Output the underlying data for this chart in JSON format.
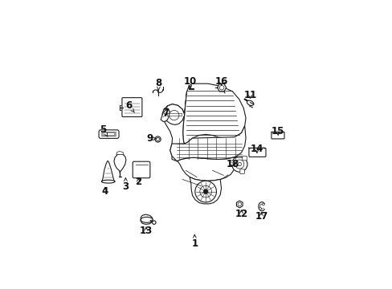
{
  "bg_color": "#ffffff",
  "line_color": "#1a1a1a",
  "label_color": "#111111",
  "label_fontsize": 8.5,
  "fig_width": 4.89,
  "fig_height": 3.6,
  "dpi": 100,
  "label_positions": {
    "1": [
      0.47,
      0.062,
      0.47,
      0.105
    ],
    "2": [
      0.218,
      0.338,
      0.218,
      0.368
    ],
    "3": [
      0.16,
      0.318,
      0.16,
      0.36
    ],
    "4": [
      0.068,
      0.295,
      0.068,
      0.328
    ],
    "5": [
      0.06,
      0.575,
      0.08,
      0.54
    ],
    "6": [
      0.175,
      0.68,
      0.2,
      0.65
    ],
    "7": [
      0.34,
      0.65,
      0.34,
      0.62
    ],
    "8": [
      0.308,
      0.782,
      0.308,
      0.748
    ],
    "9": [
      0.268,
      0.533,
      0.3,
      0.533
    ],
    "10": [
      0.45,
      0.79,
      0.45,
      0.755
    ],
    "11": [
      0.72,
      0.73,
      0.72,
      0.7
    ],
    "12": [
      0.68,
      0.195,
      0.68,
      0.225
    ],
    "13": [
      0.252,
      0.118,
      0.252,
      0.148
    ],
    "14": [
      0.75,
      0.488,
      0.75,
      0.455
    ],
    "15": [
      0.845,
      0.565,
      0.845,
      0.535
    ],
    "16": [
      0.59,
      0.79,
      0.59,
      0.758
    ],
    "17": [
      0.77,
      0.182,
      0.77,
      0.215
    ],
    "18": [
      0.64,
      0.418,
      0.665,
      0.418
    ]
  }
}
